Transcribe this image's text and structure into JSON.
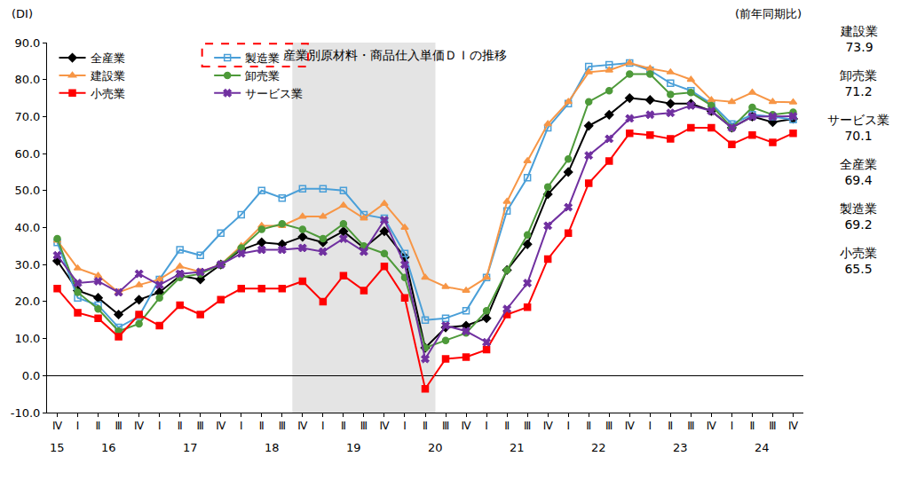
{
  "chart_data": {
    "type": "line",
    "title": "産業別原材料・商品仕入単価ＤＩの推移",
    "y_label": "(DI)",
    "note": "(前年同期比)",
    "categories": [
      "Ⅳ",
      "Ⅰ",
      "Ⅱ",
      "Ⅲ",
      "Ⅳ",
      "Ⅰ",
      "Ⅱ",
      "Ⅲ",
      "Ⅳ",
      "Ⅰ",
      "Ⅱ",
      "Ⅲ",
      "Ⅳ",
      "Ⅰ",
      "Ⅱ",
      "Ⅲ",
      "Ⅳ",
      "Ⅰ",
      "Ⅱ",
      "Ⅲ",
      "Ⅳ",
      "Ⅰ",
      "Ⅱ",
      "Ⅲ",
      "Ⅳ",
      "Ⅰ",
      "Ⅱ",
      "Ⅲ",
      "Ⅳ",
      "Ⅰ",
      "Ⅱ",
      "Ⅲ",
      "Ⅳ",
      "Ⅰ",
      "Ⅱ",
      "Ⅲ",
      "Ⅳ"
    ],
    "years": [
      "15",
      "16",
      "16",
      "16",
      "16",
      "17",
      "17",
      "17",
      "17",
      "18",
      "18",
      "18",
      "18",
      "19",
      "19",
      "19",
      "19",
      "20",
      "20",
      "20",
      "20",
      "21",
      "21",
      "21",
      "21",
      "22",
      "22",
      "22",
      "22",
      "23",
      "23",
      "23",
      "23",
      "24",
      "24",
      "24",
      "24"
    ],
    "series": [
      {
        "name": "全産業",
        "color": "#000000",
        "marker": "diamond",
        "values": [
          31,
          23,
          21,
          16.5,
          20.5,
          22.5,
          27,
          26,
          30,
          34,
          36,
          35.5,
          37.5,
          36,
          39,
          34.5,
          39,
          32,
          7.5,
          13,
          13.5,
          15.5,
          28.5,
          35.5,
          49,
          55,
          67.5,
          70.5,
          75,
          74.5,
          73.5,
          73.5,
          71.5,
          67,
          70,
          68.5,
          69.4
        ]
      },
      {
        "name": "製造業",
        "color": "#4a9fd8",
        "marker": "square-open",
        "values": [
          36,
          21,
          19,
          13,
          16,
          26,
          34,
          32.5,
          38.5,
          43.5,
          50,
          48,
          50.5,
          50.5,
          50,
          43.5,
          42.5,
          33,
          15,
          15.5,
          17.5,
          26.5,
          44.5,
          53.5,
          67,
          73.5,
          83.5,
          84,
          84.5,
          82.5,
          79,
          77,
          73.5,
          68,
          70.5,
          70,
          69.2
        ]
      },
      {
        "name": "建設業",
        "color": "#f79646",
        "marker": "triangle-up",
        "values": [
          36.5,
          29,
          27,
          22.5,
          24.5,
          26,
          29.5,
          28,
          30,
          35,
          40.5,
          40.5,
          43,
          43,
          46,
          42.5,
          46.5,
          40,
          26.5,
          24,
          23,
          26.5,
          47,
          58,
          68,
          74,
          82,
          82.5,
          84.5,
          83,
          82,
          80,
          74.5,
          74,
          76.5,
          74,
          73.9
        ]
      },
      {
        "name": "卸売業",
        "color": "#4e9a3a",
        "marker": "circle",
        "values": [
          37,
          22.5,
          18,
          12,
          14,
          21,
          26.5,
          27.5,
          30,
          34.5,
          39.5,
          41,
          39.5,
          37,
          41,
          35,
          33,
          26.5,
          7.5,
          9.5,
          11.5,
          17.5,
          28.5,
          38,
          51,
          58.5,
          74,
          77,
          81.5,
          81.5,
          76,
          76.5,
          73,
          67,
          72.5,
          70.5,
          71.2
        ]
      },
      {
        "name": "小売業",
        "color": "#ff0000",
        "marker": "square",
        "values": [
          23.5,
          17,
          15.5,
          10.5,
          16.5,
          13.5,
          19,
          16.5,
          20.5,
          23.5,
          23.5,
          23.5,
          25.5,
          20,
          27,
          23,
          29.5,
          21,
          -3.6,
          4.5,
          5,
          7,
          16.5,
          18.5,
          31.5,
          38.5,
          52,
          58,
          65.5,
          65,
          64,
          67,
          67,
          62.5,
          65,
          63,
          65.5
        ]
      },
      {
        "name": "サービス業",
        "color": "#7030a0",
        "marker": "x",
        "values": [
          32.5,
          25,
          25.5,
          22.5,
          27.5,
          24.5,
          27.5,
          28,
          30,
          33,
          34,
          34,
          34.5,
          33.5,
          37,
          33.5,
          42,
          30,
          4.5,
          13.5,
          12,
          9,
          18,
          25,
          40.5,
          45.5,
          59.5,
          64,
          69.5,
          70.5,
          71,
          73,
          71.5,
          67,
          70,
          70,
          70.1
        ]
      }
    ],
    "ylim": [
      -10,
      90
    ],
    "yticks": [
      {
        "value": -10,
        "label": "-10.0"
      },
      {
        "value": 0,
        "label": "0.0"
      },
      {
        "value": 10,
        "label": "10.0"
      },
      {
        "value": 20,
        "label": "20.0"
      },
      {
        "value": 30,
        "label": "30.0"
      },
      {
        "value": 40,
        "label": "40.0"
      },
      {
        "value": 50,
        "label": "50.0"
      },
      {
        "value": 60,
        "label": "60.0"
      },
      {
        "value": 70,
        "label": "70.0"
      },
      {
        "value": 80,
        "label": "80.0"
      },
      {
        "value": 90,
        "label": "90.0"
      }
    ],
    "grid": false,
    "legend": "upper left",
    "shaded": {
      "start": {
        "year": "18",
        "quarter": "Ⅳ"
      },
      "end": {
        "year": "20",
        "quarter": "Ⅱ"
      }
    },
    "end_labels": [
      "建設業",
      "卸売業",
      "サービス業",
      "全産業",
      "製造業",
      "小売業"
    ]
  }
}
